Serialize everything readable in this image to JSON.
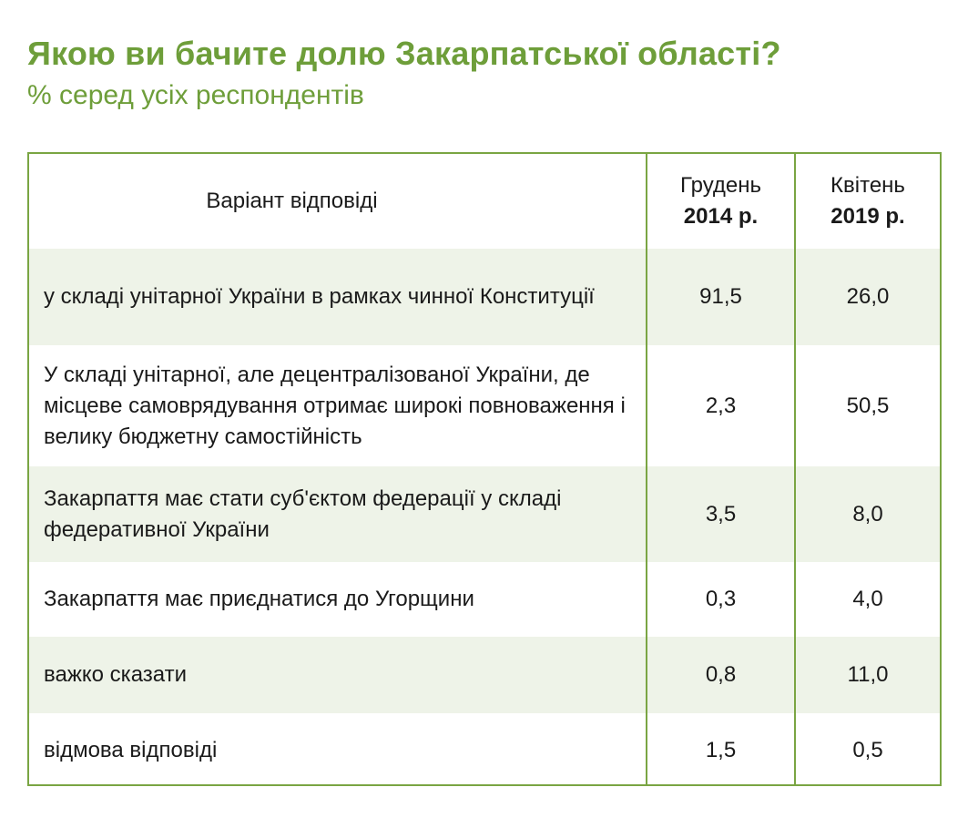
{
  "title": "Якою ви бачите долю Закарпатської області?",
  "subtitle": "% серед усіх респондентів",
  "chart_data": {
    "type": "table",
    "columns": [
      {
        "label": "Варіант відповіді"
      },
      {
        "label_line1": "Грудень",
        "label_line2": "2014 р."
      },
      {
        "label_line1": "Квітень",
        "label_line2": "2019 р."
      }
    ],
    "rows": [
      {
        "label": "у складі унітарної України в рамках чинної Конституції",
        "dec2014": "91,5",
        "apr2019": "26,0"
      },
      {
        "label": "У складі унітарної, але децентралізованої України, де місцеве самоврядування отримає широкі повноваження і велику бюджетну самостійність",
        "dec2014": "2,3",
        "apr2019": "50,5"
      },
      {
        "label": "Закарпаття має стати суб'єктом федерації у складі федеративної України",
        "dec2014": "3,5",
        "apr2019": "8,0"
      },
      {
        "label": "Закарпаття має приєднатися до Угорщини",
        "dec2014": "0,3",
        "apr2019": "4,0"
      },
      {
        "label": "важко сказати",
        "dec2014": "0,8",
        "apr2019": "11,0"
      },
      {
        "label": "відмова відповіді",
        "dec2014": "1,5",
        "apr2019": "0,5"
      }
    ]
  },
  "colors": {
    "accent": "#6e9e3a",
    "border": "#7aa543",
    "row_shade": "#eef3e8"
  }
}
